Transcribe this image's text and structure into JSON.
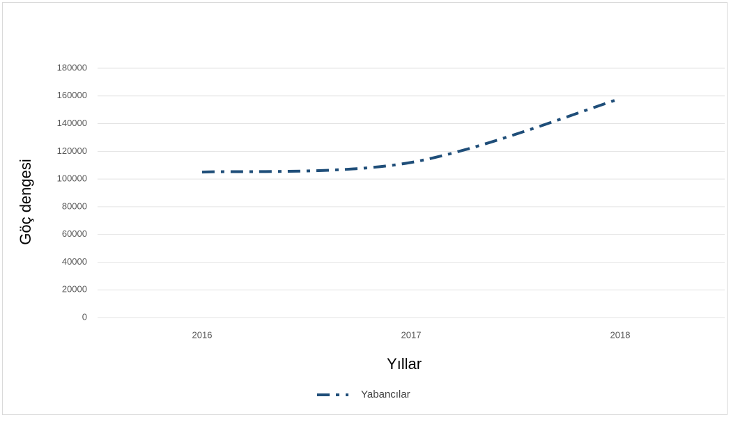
{
  "chart_data": {
    "type": "line",
    "x_label": "Yıllar",
    "y_label": "Göç dengesi",
    "categories": [
      "2016",
      "2017",
      "2018"
    ],
    "series": [
      {
        "name": "Yabancılar",
        "color": "#1f4e79",
        "values": [
          105000,
          112000,
          158000
        ]
      }
    ],
    "ylim": [
      0,
      180000
    ],
    "yticks": [
      0,
      20000,
      40000,
      60000,
      80000,
      100000,
      120000,
      140000,
      160000,
      180000
    ],
    "grid": true,
    "legend": "bottom"
  }
}
